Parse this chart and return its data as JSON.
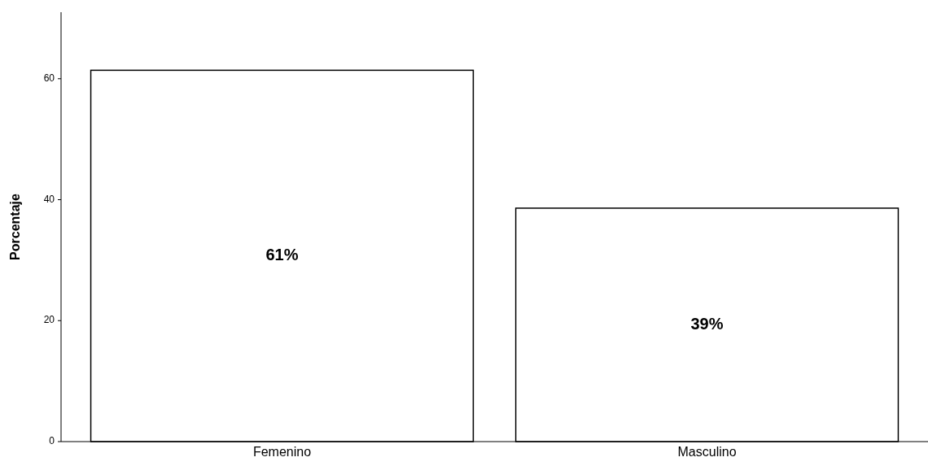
{
  "chart_data": {
    "type": "bar",
    "ylabel": "Porcentaje",
    "categories": [
      "Femenino",
      "Masculino"
    ],
    "values": [
      61.4,
      38.6
    ],
    "value_labels": [
      "61%",
      "39%"
    ],
    "color": "#ffffff",
    "ylim": [
      0,
      71
    ],
    "yticks": [
      0,
      20,
      40,
      60
    ],
    "grid": false
  }
}
